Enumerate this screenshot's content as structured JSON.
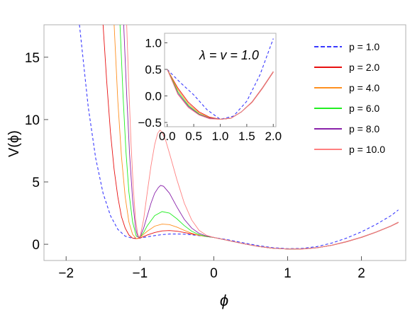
{
  "chart_data": {
    "type": "line",
    "xlabel": "ϕ",
    "ylabel": "V(ϕ)",
    "xlim": [
      -2.3,
      2.6
    ],
    "ylim": [
      -1.3,
      17.6
    ],
    "x_ticks": [
      "−2",
      "−1",
      "0",
      "1",
      "2"
    ],
    "y_ticks": [
      "0",
      "5",
      "10",
      "15"
    ],
    "series": [
      {
        "name": "p = 1.0",
        "color": "#3a3aff",
        "dashed": true,
        "points": [
          [
            -1.82,
            17.6
          ],
          [
            -1.7,
            11.0
          ],
          [
            -1.6,
            6.9
          ],
          [
            -1.5,
            4.1
          ],
          [
            -1.4,
            2.3
          ],
          [
            -1.3,
            1.2
          ],
          [
            -1.2,
            0.65
          ],
          [
            -1.1,
            0.48
          ],
          [
            -1.0,
            0.5
          ],
          [
            -0.9,
            0.6
          ],
          [
            -0.8,
            0.7
          ],
          [
            -0.7,
            0.78
          ],
          [
            -0.6,
            0.82
          ],
          [
            -0.5,
            0.83
          ],
          [
            -0.4,
            0.81
          ],
          [
            -0.3,
            0.76
          ],
          [
            -0.2,
            0.7
          ],
          [
            -0.1,
            0.63
          ],
          [
            0.0,
            0.55
          ],
          [
            0.2,
            0.35
          ],
          [
            0.4,
            0.12
          ],
          [
            0.6,
            -0.1
          ],
          [
            0.8,
            -0.27
          ],
          [
            1.0,
            -0.35
          ],
          [
            1.2,
            -0.33
          ],
          [
            1.4,
            -0.18
          ],
          [
            1.6,
            0.1
          ],
          [
            1.8,
            0.5
          ],
          [
            2.0,
            1.0
          ],
          [
            2.2,
            1.6
          ],
          [
            2.4,
            2.3
          ],
          [
            2.5,
            2.75
          ]
        ]
      },
      {
        "name": "p = 2.0",
        "color": "#e81010",
        "dashed": false,
        "points": [
          [
            -1.5,
            17.6
          ],
          [
            -1.45,
            13.0
          ],
          [
            -1.4,
            9.0
          ],
          [
            -1.35,
            6.0
          ],
          [
            -1.3,
            3.8
          ],
          [
            -1.25,
            2.2
          ],
          [
            -1.2,
            1.3
          ],
          [
            -1.15,
            0.75
          ],
          [
            -1.1,
            0.5
          ],
          [
            -1.05,
            0.45
          ],
          [
            -1.0,
            0.5
          ],
          [
            -0.9,
            0.75
          ],
          [
            -0.8,
            0.95
          ],
          [
            -0.7,
            1.07
          ],
          [
            -0.6,
            1.1
          ],
          [
            -0.5,
            1.05
          ],
          [
            -0.4,
            0.95
          ],
          [
            -0.3,
            0.83
          ],
          [
            -0.2,
            0.72
          ],
          [
            -0.1,
            0.63
          ],
          [
            0.0,
            0.55
          ],
          [
            0.2,
            0.3
          ],
          [
            0.4,
            0.05
          ],
          [
            0.6,
            -0.17
          ],
          [
            0.8,
            -0.32
          ],
          [
            1.0,
            -0.38
          ],
          [
            1.2,
            -0.38
          ],
          [
            1.4,
            -0.28
          ],
          [
            1.6,
            -0.08
          ],
          [
            1.8,
            0.2
          ],
          [
            2.0,
            0.55
          ],
          [
            2.2,
            0.97
          ],
          [
            2.4,
            1.45
          ],
          [
            2.5,
            1.75
          ]
        ]
      },
      {
        "name": "p = 4.0",
        "color": "#ff9020",
        "dashed": false,
        "points": [
          [
            -1.35,
            17.6
          ],
          [
            -1.3,
            11.5
          ],
          [
            -1.25,
            7.0
          ],
          [
            -1.2,
            3.8
          ],
          [
            -1.15,
            1.8
          ],
          [
            -1.1,
            0.8
          ],
          [
            -1.05,
            0.45
          ],
          [
            -1.0,
            0.55
          ],
          [
            -0.9,
            1.05
          ],
          [
            -0.8,
            1.45
          ],
          [
            -0.7,
            1.62
          ],
          [
            -0.6,
            1.58
          ],
          [
            -0.5,
            1.38
          ],
          [
            -0.4,
            1.12
          ],
          [
            -0.3,
            0.88
          ],
          [
            -0.2,
            0.72
          ],
          [
            -0.1,
            0.62
          ],
          [
            0.0,
            0.55
          ],
          [
            0.2,
            0.3
          ],
          [
            0.4,
            0.05
          ],
          [
            0.6,
            -0.17
          ],
          [
            0.8,
            -0.32
          ],
          [
            1.0,
            -0.38
          ],
          [
            1.2,
            -0.37
          ],
          [
            1.4,
            -0.27
          ],
          [
            1.6,
            -0.07
          ],
          [
            1.8,
            0.22
          ],
          [
            2.0,
            0.57
          ],
          [
            2.2,
            0.99
          ],
          [
            2.4,
            1.47
          ],
          [
            2.5,
            1.77
          ]
        ]
      },
      {
        "name": "p = 6.0",
        "color": "#22ee22",
        "dashed": false,
        "points": [
          [
            -1.27,
            17.6
          ],
          [
            -1.23,
            12.0
          ],
          [
            -1.19,
            7.5
          ],
          [
            -1.15,
            4.2
          ],
          [
            -1.1,
            1.8
          ],
          [
            -1.05,
            0.65
          ],
          [
            -1.0,
            0.55
          ],
          [
            -0.95,
            0.95
          ],
          [
            -0.9,
            1.5
          ],
          [
            -0.8,
            2.3
          ],
          [
            -0.7,
            2.62
          ],
          [
            -0.6,
            2.5
          ],
          [
            -0.5,
            2.05
          ],
          [
            -0.4,
            1.5
          ],
          [
            -0.3,
            1.05
          ],
          [
            -0.2,
            0.78
          ],
          [
            -0.1,
            0.63
          ],
          [
            0.0,
            0.55
          ],
          [
            0.2,
            0.3
          ],
          [
            0.4,
            0.05
          ],
          [
            0.6,
            -0.17
          ],
          [
            0.8,
            -0.32
          ],
          [
            1.0,
            -0.38
          ],
          [
            1.2,
            -0.37
          ],
          [
            1.4,
            -0.27
          ],
          [
            1.6,
            -0.07
          ],
          [
            1.8,
            0.22
          ],
          [
            2.0,
            0.57
          ],
          [
            2.2,
            0.99
          ],
          [
            2.4,
            1.47
          ],
          [
            2.5,
            1.77
          ]
        ]
      },
      {
        "name": "p = 8.0",
        "color": "#8a22aa",
        "dashed": false,
        "points": [
          [
            -1.22,
            17.6
          ],
          [
            -1.18,
            12.0
          ],
          [
            -1.14,
            7.2
          ],
          [
            -1.1,
            3.6
          ],
          [
            -1.06,
            1.3
          ],
          [
            -1.03,
            0.6
          ],
          [
            -1.0,
            0.55
          ],
          [
            -0.95,
            1.3
          ],
          [
            -0.9,
            2.3
          ],
          [
            -0.85,
            3.3
          ],
          [
            -0.8,
            4.1
          ],
          [
            -0.75,
            4.55
          ],
          [
            -0.72,
            4.72
          ],
          [
            -0.68,
            4.65
          ],
          [
            -0.6,
            4.1
          ],
          [
            -0.5,
            3.0
          ],
          [
            -0.4,
            2.0
          ],
          [
            -0.3,
            1.3
          ],
          [
            -0.2,
            0.88
          ],
          [
            -0.1,
            0.66
          ],
          [
            0.0,
            0.55
          ],
          [
            0.2,
            0.3
          ],
          [
            0.4,
            0.05
          ],
          [
            0.6,
            -0.17
          ],
          [
            0.8,
            -0.32
          ],
          [
            1.0,
            -0.38
          ],
          [
            1.2,
            -0.37
          ],
          [
            1.4,
            -0.27
          ],
          [
            1.6,
            -0.07
          ],
          [
            1.8,
            0.22
          ],
          [
            2.0,
            0.57
          ],
          [
            2.2,
            0.99
          ],
          [
            2.4,
            1.47
          ],
          [
            2.5,
            1.77
          ]
        ]
      },
      {
        "name": "p = 10.0",
        "color": "#ff8080",
        "dashed": false,
        "points": [
          [
            -1.18,
            17.6
          ],
          [
            -1.15,
            12.5
          ],
          [
            -1.12,
            8.0
          ],
          [
            -1.09,
            4.5
          ],
          [
            -1.06,
            2.0
          ],
          [
            -1.03,
            0.8
          ],
          [
            -1.0,
            0.55
          ],
          [
            -0.95,
            2.0
          ],
          [
            -0.9,
            4.2
          ],
          [
            -0.85,
            6.3
          ],
          [
            -0.8,
            8.0
          ],
          [
            -0.76,
            8.9
          ],
          [
            -0.73,
            9.15
          ],
          [
            -0.7,
            9.0
          ],
          [
            -0.65,
            8.3
          ],
          [
            -0.6,
            7.3
          ],
          [
            -0.5,
            5.2
          ],
          [
            -0.4,
            3.3
          ],
          [
            -0.3,
            1.95
          ],
          [
            -0.2,
            1.12
          ],
          [
            -0.1,
            0.72
          ],
          [
            0.0,
            0.55
          ],
          [
            0.2,
            0.3
          ],
          [
            0.4,
            0.05
          ],
          [
            0.6,
            -0.17
          ],
          [
            0.8,
            -0.32
          ],
          [
            1.0,
            -0.38
          ],
          [
            1.2,
            -0.37
          ],
          [
            1.4,
            -0.27
          ],
          [
            1.6,
            -0.07
          ],
          [
            1.8,
            0.22
          ],
          [
            2.0,
            0.57
          ],
          [
            2.2,
            0.99
          ],
          [
            2.4,
            1.47
          ],
          [
            2.5,
            1.77
          ]
        ]
      }
    ],
    "inset": {
      "annotation": "λ = v = 1.0",
      "xlim": [
        -0.05,
        2.05
      ],
      "ylim": [
        -0.58,
        1.18
      ],
      "x_ticks": [
        "0.0",
        "0.5",
        "1.0",
        "1.5",
        "2.0"
      ],
      "y_ticks": [
        "−0.5",
        "0.0",
        "0.5",
        "1.0"
      ],
      "series": [
        {
          "name": "p = 1.0",
          "color": "#3a3aff",
          "dashed": true,
          "points": [
            [
              0,
              0.5
            ],
            [
              0.25,
              0.25
            ],
            [
              0.5,
              0.02
            ],
            [
              0.75,
              -0.26
            ],
            [
              1.0,
              -0.44
            ],
            [
              1.25,
              -0.38
            ],
            [
              1.5,
              -0.1
            ],
            [
              1.75,
              0.4
            ],
            [
              2.0,
              1.08
            ]
          ]
        },
        {
          "name": "p = 2.0",
          "color": "#e81010",
          "dashed": false,
          "points": [
            [
              0,
              0.5
            ],
            [
              0.2,
              0.15
            ],
            [
              0.4,
              -0.12
            ],
            [
              0.6,
              -0.3
            ],
            [
              0.8,
              -0.4
            ],
            [
              1.0,
              -0.44
            ],
            [
              1.2,
              -0.42
            ],
            [
              1.4,
              -0.3
            ],
            [
              1.6,
              -0.12
            ],
            [
              1.8,
              0.15
            ],
            [
              2.0,
              0.45
            ]
          ]
        },
        {
          "name": "p = 4.0",
          "color": "#ff9020",
          "dashed": false,
          "points": [
            [
              0,
              0.5
            ],
            [
              0.2,
              0.12
            ],
            [
              0.4,
              -0.15
            ],
            [
              0.6,
              -0.32
            ],
            [
              0.8,
              -0.41
            ],
            [
              1.0,
              -0.44
            ],
            [
              1.2,
              -0.42
            ],
            [
              1.4,
              -0.3
            ],
            [
              1.6,
              -0.11
            ],
            [
              1.8,
              0.16
            ],
            [
              2.0,
              0.46
            ]
          ]
        },
        {
          "name": "p = 6.0",
          "color": "#22ee22",
          "dashed": false,
          "points": [
            [
              0,
              0.5
            ],
            [
              0.2,
              0.08
            ],
            [
              0.4,
              -0.18
            ],
            [
              0.6,
              -0.34
            ],
            [
              0.8,
              -0.42
            ],
            [
              1.0,
              -0.44
            ],
            [
              1.2,
              -0.42
            ],
            [
              1.4,
              -0.3
            ],
            [
              1.6,
              -0.11
            ],
            [
              1.8,
              0.16
            ],
            [
              2.0,
              0.46
            ]
          ]
        },
        {
          "name": "p = 8.0",
          "color": "#8a22aa",
          "dashed": false,
          "points": [
            [
              0,
              0.5
            ],
            [
              0.2,
              0.05
            ],
            [
              0.4,
              -0.2
            ],
            [
              0.6,
              -0.35
            ],
            [
              0.8,
              -0.42
            ],
            [
              1.0,
              -0.44
            ],
            [
              1.2,
              -0.42
            ],
            [
              1.4,
              -0.3
            ],
            [
              1.6,
              -0.11
            ],
            [
              1.8,
              0.16
            ],
            [
              2.0,
              0.46
            ]
          ]
        },
        {
          "name": "p = 10.0",
          "color": "#ff8080",
          "dashed": false,
          "points": [
            [
              0,
              0.5
            ],
            [
              0.2,
              0.03
            ],
            [
              0.4,
              -0.22
            ],
            [
              0.6,
              -0.36
            ],
            [
              0.8,
              -0.43
            ],
            [
              1.0,
              -0.44
            ],
            [
              1.2,
              -0.42
            ],
            [
              1.4,
              -0.3
            ],
            [
              1.6,
              -0.11
            ],
            [
              1.8,
              0.16
            ],
            [
              2.0,
              0.46
            ]
          ]
        }
      ]
    },
    "legend": {
      "position": "right",
      "entries": [
        "p = 1.0",
        "p = 2.0",
        "p = 4.0",
        "p = 6.0",
        "p = 8.0",
        "p = 10.0"
      ]
    }
  }
}
